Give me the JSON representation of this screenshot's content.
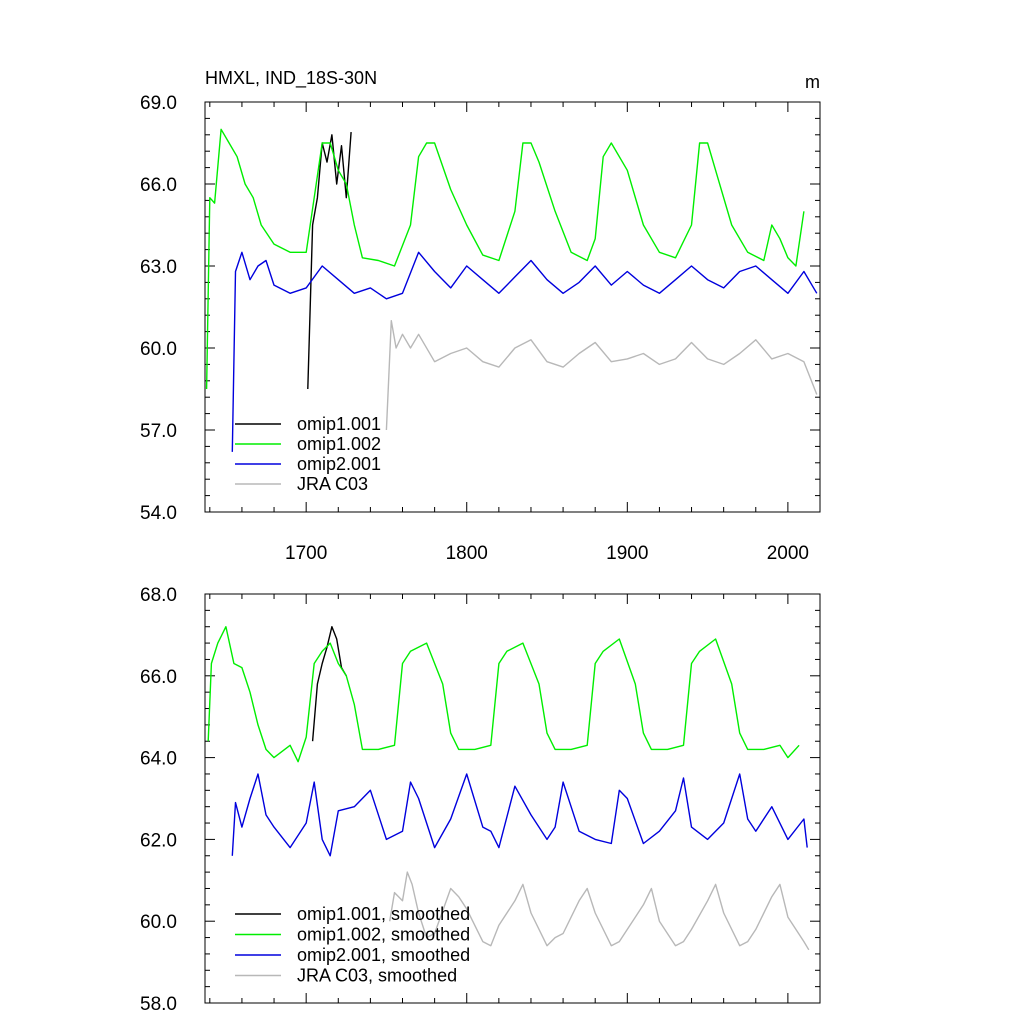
{
  "chart_data": [
    {
      "type": "line",
      "title": "HMXL, IND_18S-30N",
      "units": "m",
      "xlim": [
        1637,
        2020
      ],
      "ylim": [
        54.0,
        69.0
      ],
      "x_ticks": [
        1700,
        1800,
        1900,
        2000
      ],
      "x_tick_labels": [
        "1700",
        "1800",
        "1900",
        "2000"
      ],
      "y_ticks": [
        54.0,
        57.0,
        60.0,
        63.0,
        66.0,
        69.0
      ],
      "y_tick_labels": [
        "54.0",
        "57.0",
        "60.0",
        "63.0",
        "66.0",
        "69.0"
      ],
      "legend_position": "bottom-left",
      "series": [
        {
          "name": "omip1.001",
          "color": "#000000",
          "x": [
            1701,
            1704,
            1707,
            1710,
            1713,
            1716,
            1719,
            1722,
            1725,
            1728
          ],
          "values": [
            58.5,
            64.5,
            65.5,
            67.5,
            66.8,
            67.8,
            66.0,
            67.4,
            65.5,
            67.9
          ]
        },
        {
          "name": "omip1.002",
          "color": "#00ee00",
          "x": [
            1638,
            1640,
            1643,
            1647,
            1652,
            1657,
            1662,
            1667,
            1672,
            1680,
            1690,
            1700,
            1705,
            1710,
            1715,
            1720,
            1725,
            1730,
            1735,
            1745,
            1755,
            1765,
            1770,
            1775,
            1780,
            1790,
            1800,
            1810,
            1820,
            1830,
            1835,
            1840,
            1845,
            1855,
            1865,
            1875,
            1880,
            1885,
            1890,
            1900,
            1910,
            1920,
            1930,
            1940,
            1945,
            1950,
            1955,
            1965,
            1975,
            1985,
            1990,
            1995,
            2000,
            2005,
            2010
          ],
          "values": [
            58.5,
            65.5,
            65.3,
            68.0,
            67.5,
            67.0,
            66.0,
            65.5,
            64.5,
            63.8,
            63.5,
            63.5,
            65.5,
            67.5,
            67.5,
            66.5,
            66.0,
            64.5,
            63.3,
            63.2,
            63.0,
            64.5,
            67.0,
            67.5,
            67.5,
            65.8,
            64.5,
            63.4,
            63.2,
            65.0,
            67.5,
            67.5,
            66.8,
            65.0,
            63.5,
            63.2,
            64.0,
            67.0,
            67.5,
            66.5,
            64.5,
            63.5,
            63.3,
            64.5,
            67.5,
            67.5,
            66.5,
            64.5,
            63.5,
            63.2,
            64.5,
            64.0,
            63.3,
            63.0,
            65.0
          ]
        },
        {
          "name": "omip2.001",
          "color": "#0000dd",
          "x": [
            1654,
            1656,
            1660,
            1665,
            1670,
            1675,
            1680,
            1690,
            1700,
            1710,
            1720,
            1730,
            1740,
            1750,
            1760,
            1770,
            1780,
            1790,
            1800,
            1810,
            1820,
            1830,
            1840,
            1850,
            1860,
            1870,
            1880,
            1890,
            1900,
            1910,
            1920,
            1930,
            1940,
            1950,
            1960,
            1970,
            1980,
            1990,
            2000,
            2010,
            2018
          ],
          "values": [
            56.2,
            62.8,
            63.5,
            62.5,
            63.0,
            63.2,
            62.3,
            62.0,
            62.2,
            63.0,
            62.5,
            62.0,
            62.2,
            61.8,
            62.0,
            63.5,
            62.8,
            62.2,
            63.0,
            62.5,
            62.0,
            62.6,
            63.2,
            62.5,
            62.0,
            62.4,
            63.0,
            62.3,
            62.8,
            62.3,
            62.0,
            62.5,
            63.0,
            62.5,
            62.2,
            62.8,
            63.0,
            62.5,
            62.0,
            62.8,
            62.0
          ]
        },
        {
          "name": "JRA C03",
          "color": "#b8b8b8",
          "x": [
            1750,
            1753,
            1756,
            1760,
            1765,
            1770,
            1780,
            1790,
            1800,
            1810,
            1820,
            1830,
            1840,
            1850,
            1860,
            1870,
            1880,
            1890,
            1900,
            1910,
            1920,
            1930,
            1940,
            1950,
            1960,
            1970,
            1980,
            1990,
            2000,
            2010,
            2018
          ],
          "values": [
            57.0,
            61.0,
            60.0,
            60.5,
            60.0,
            60.5,
            59.5,
            59.8,
            60.0,
            59.5,
            59.3,
            60.0,
            60.3,
            59.5,
            59.3,
            59.8,
            60.2,
            59.5,
            59.6,
            59.8,
            59.4,
            59.6,
            60.2,
            59.6,
            59.4,
            59.8,
            60.3,
            59.6,
            59.8,
            59.5,
            58.3
          ]
        }
      ]
    },
    {
      "type": "line",
      "xlim": [
        1637,
        2020
      ],
      "ylim": [
        58.0,
        68.0
      ],
      "y_ticks": [
        58.0,
        60.0,
        62.0,
        64.0,
        66.0,
        68.0
      ],
      "y_tick_labels": [
        "58.0",
        "60.0",
        "62.0",
        "64.0",
        "66.0",
        "68.0"
      ],
      "legend_position": "bottom-left",
      "series": [
        {
          "name": "omip1.001, smoothed",
          "color": "#000000",
          "x": [
            1704,
            1707,
            1710,
            1713,
            1716,
            1719,
            1722,
            1725
          ],
          "values": [
            64.4,
            65.8,
            66.3,
            66.7,
            67.2,
            66.9,
            66.2,
            66.0
          ]
        },
        {
          "name": "omip1.002, smoothed",
          "color": "#00ee00",
          "x": [
            1639,
            1641,
            1645,
            1650,
            1655,
            1660,
            1665,
            1670,
            1675,
            1680,
            1690,
            1695,
            1700,
            1705,
            1710,
            1715,
            1720,
            1725,
            1730,
            1735,
            1745,
            1755,
            1760,
            1765,
            1775,
            1785,
            1790,
            1795,
            1805,
            1815,
            1820,
            1825,
            1835,
            1845,
            1850,
            1855,
            1865,
            1875,
            1880,
            1885,
            1895,
            1905,
            1910,
            1915,
            1925,
            1935,
            1940,
            1945,
            1955,
            1965,
            1970,
            1975,
            1985,
            1995,
            2000,
            2007
          ],
          "values": [
            64.4,
            66.3,
            66.8,
            67.2,
            66.3,
            66.2,
            65.6,
            64.8,
            64.2,
            64.0,
            64.3,
            63.9,
            64.5,
            66.3,
            66.6,
            66.8,
            66.3,
            66.0,
            65.3,
            64.2,
            64.2,
            64.3,
            66.3,
            66.6,
            66.8,
            65.8,
            64.6,
            64.2,
            64.2,
            64.3,
            66.3,
            66.6,
            66.8,
            65.8,
            64.6,
            64.2,
            64.2,
            64.3,
            66.3,
            66.6,
            66.9,
            65.8,
            64.6,
            64.2,
            64.2,
            64.3,
            66.3,
            66.6,
            66.9,
            65.8,
            64.6,
            64.2,
            64.2,
            64.3,
            64.0,
            64.3
          ]
        },
        {
          "name": "omip2.001, smoothed",
          "color": "#0000dd",
          "x": [
            1654,
            1656,
            1660,
            1665,
            1670,
            1675,
            1680,
            1690,
            1700,
            1705,
            1710,
            1715,
            1720,
            1730,
            1740,
            1750,
            1760,
            1765,
            1770,
            1780,
            1790,
            1800,
            1810,
            1815,
            1820,
            1830,
            1840,
            1850,
            1855,
            1860,
            1870,
            1880,
            1890,
            1895,
            1900,
            1910,
            1920,
            1930,
            1935,
            1940,
            1950,
            1960,
            1970,
            1975,
            1980,
            1990,
            2000,
            2010,
            2012
          ],
          "values": [
            61.6,
            62.9,
            62.3,
            63.0,
            63.6,
            62.6,
            62.3,
            61.8,
            62.4,
            63.4,
            62.0,
            61.6,
            62.7,
            62.8,
            63.2,
            62.0,
            62.2,
            63.4,
            63.0,
            61.8,
            62.5,
            63.6,
            62.3,
            62.2,
            61.8,
            63.3,
            62.6,
            62.0,
            62.3,
            63.4,
            62.2,
            62.0,
            61.9,
            63.2,
            63.0,
            61.9,
            62.2,
            62.7,
            63.5,
            62.3,
            62.0,
            62.4,
            63.6,
            62.5,
            62.2,
            62.8,
            62.0,
            62.5,
            61.8
          ]
        },
        {
          "name": "JRA C03, smoothed",
          "color": "#b8b8b8",
          "x": [
            1752,
            1755,
            1760,
            1763,
            1766,
            1770,
            1775,
            1780,
            1790,
            1795,
            1800,
            1810,
            1815,
            1820,
            1830,
            1835,
            1840,
            1850,
            1855,
            1860,
            1870,
            1875,
            1880,
            1890,
            1895,
            1900,
            1910,
            1915,
            1920,
            1930,
            1935,
            1940,
            1950,
            1955,
            1960,
            1970,
            1975,
            1980,
            1990,
            1995,
            2000,
            2010,
            2013
          ],
          "values": [
            60.0,
            60.7,
            60.5,
            61.2,
            60.9,
            60.2,
            59.6,
            59.7,
            60.8,
            60.6,
            60.3,
            59.5,
            59.4,
            59.9,
            60.5,
            60.9,
            60.2,
            59.4,
            59.6,
            59.7,
            60.5,
            60.8,
            60.2,
            59.4,
            59.5,
            59.8,
            60.4,
            60.8,
            60.0,
            59.4,
            59.5,
            59.8,
            60.5,
            60.9,
            60.2,
            59.4,
            59.5,
            59.8,
            60.6,
            60.9,
            60.1,
            59.5,
            59.3
          ]
        }
      ]
    }
  ]
}
